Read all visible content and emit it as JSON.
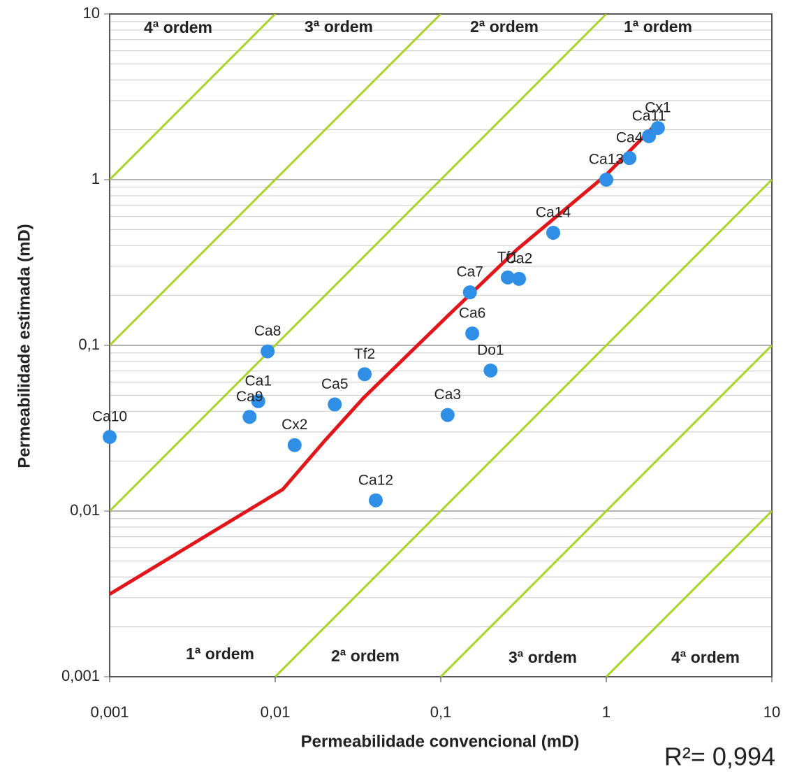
{
  "chart_data": {
    "type": "scatter",
    "xlabel": "Permeabilidade convencional (mD)",
    "ylabel": "Permeabilidade estimada (mD)",
    "xlog": true,
    "ylog": true,
    "xlim": [
      0.001,
      10
    ],
    "ylim": [
      0.001,
      10
    ],
    "xticks": [
      {
        "value": 0.001,
        "label": "0,001"
      },
      {
        "value": 0.01,
        "label": "0,01"
      },
      {
        "value": 0.1,
        "label": "0,1"
      },
      1,
      10
    ],
    "yticks": [
      {
        "value": 0.001,
        "label": "0,001"
      },
      {
        "value": 0.01,
        "label": "0,01"
      },
      {
        "value": 0.1,
        "label": "0,1"
      },
      1,
      10
    ],
    "y_minor_ticks": [
      0.002,
      0.003,
      0.004,
      0.005,
      0.006,
      0.007,
      0.008,
      0.009,
      0.02,
      0.03,
      0.04,
      0.05,
      0.06,
      0.07,
      0.08,
      0.09,
      0.2,
      0.3,
      0.4,
      0.5,
      0.6,
      0.7,
      0.8,
      0.9,
      2,
      3,
      4,
      5,
      6,
      7,
      8,
      9
    ],
    "points": {
      "color": "#2f8fe6",
      "labels": [
        "Ca10",
        "Ca8",
        "Ca1",
        "Ca9",
        "Cx2",
        "Ca5",
        "Tf2",
        "Ca12",
        "Ca3",
        "Ca7",
        "Ca6",
        "Do1",
        "Tf1",
        "Ca2",
        "Ca14",
        "Ca13",
        "Ca4",
        "Ca11",
        "Cx1"
      ],
      "x": [
        0.001,
        0.009,
        0.0079,
        0.007,
        0.0131,
        0.0229,
        0.0347,
        0.0405,
        0.11,
        0.15,
        0.155,
        0.2,
        0.254,
        0.297,
        0.478,
        1,
        1.38,
        1.81,
        2.05
      ],
      "values": [
        0.028,
        0.092,
        0.046,
        0.037,
        0.025,
        0.044,
        0.067,
        0.0116,
        0.038,
        0.209,
        0.118,
        0.0705,
        0.257,
        0.252,
        0.478,
        1,
        1.35,
        1.83,
        2.05
      ]
    },
    "fit_line": {
      "color": "#e0161b",
      "x": [
        0.001,
        0.0111,
        0.02,
        0.0339,
        0.109,
        0.288,
        1,
        2.05
      ],
      "values": [
        0.00315,
        0.0135,
        0.0267,
        0.0478,
        0.149,
        0.378,
        1.07,
        2.22
      ]
    },
    "guide_lines": [
      {
        "color": "#a8d42a",
        "x": [
          0.001,
          0.01
        ],
        "values": [
          1,
          10
        ]
      },
      {
        "color": "#a8d42a",
        "x": [
          0.001,
          0.1
        ],
        "values": [
          0.1,
          10
        ]
      },
      {
        "color": "#a8d42a",
        "x": [
          0.001,
          1
        ],
        "values": [
          0.01,
          10
        ]
      },
      {
        "color": "#a8d42a",
        "x": [
          0.01,
          10
        ],
        "values": [
          0.001,
          1
        ]
      },
      {
        "color": "#a8d42a",
        "x": [
          0.1,
          10
        ],
        "values": [
          0.001,
          0.1
        ]
      },
      {
        "color": "#a8d42a",
        "x": [
          1,
          10
        ],
        "values": [
          0.001,
          0.01
        ]
      }
    ],
    "annotations": [
      "4ª  ordem",
      "3ª  ordem",
      "2ª  ordem",
      "1ª  ordem",
      "1ª ordem",
      "2ª  ordem",
      "3ª  ordem",
      "4ª  ordem"
    ],
    "r_squared": "R²= 0,994"
  }
}
